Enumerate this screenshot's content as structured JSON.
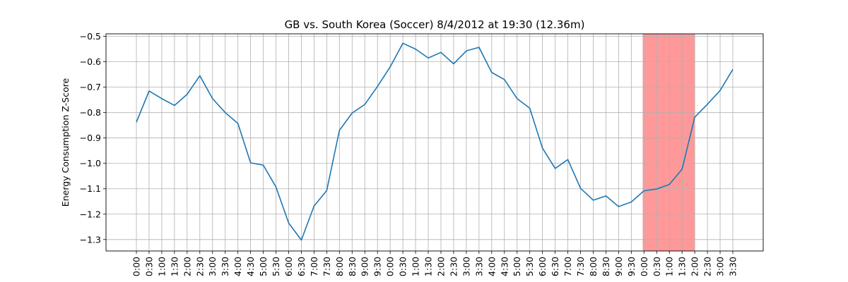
{
  "chart_data": {
    "type": "line",
    "title": "GB vs. South Korea (Soccer) 8/4/2012 at 19:30 (12.36m)",
    "xlabel": "",
    "ylabel": "Energy Consumption Z-Score",
    "ylim": [
      -1.345,
      -0.49
    ],
    "yticks": [
      -1.3,
      -1.2,
      -1.1,
      -1.0,
      -0.9,
      -0.8,
      -0.7,
      -0.6,
      -0.5
    ],
    "ytick_labels": [
      "−1.3",
      "−1.2",
      "−1.1",
      "−1.0",
      "−0.9",
      "−0.8",
      "−0.7",
      "−0.6",
      "−0.5"
    ],
    "x_tick_labels": [
      "0:00",
      "0:30",
      "1:00",
      "1:30",
      "2:00",
      "2:30",
      "3:00",
      "3:30",
      "4:00",
      "4:30",
      "5:00",
      "5:30",
      "6:00",
      "6:30",
      "7:00",
      "7:30",
      "8:00",
      "8:30",
      "9:00",
      "9:30",
      "0:00",
      "0:30",
      "1:00",
      "1:30",
      "2:00",
      "2:30",
      "3:00",
      "3:30",
      "4:00",
      "4:30",
      "5:00",
      "5:30",
      "6:00",
      "6:30",
      "7:00",
      "7:30",
      "8:00",
      "8:30",
      "9:00",
      "9:30",
      "0:00",
      "0:30",
      "1:00",
      "1:30",
      "2:00",
      "2:30",
      "3:00",
      "3:30"
    ],
    "grid": true,
    "highlight": {
      "x_start_index": 39.9,
      "x_end_index": 44,
      "color": "#ff9999"
    },
    "series": [
      {
        "color": "#1f77b4",
        "values": [
          -0.838,
          -0.715,
          -0.745,
          -0.772,
          -0.728,
          -0.655,
          -0.745,
          -0.8,
          -0.843,
          -0.998,
          -1.007,
          -1.093,
          -1.235,
          -1.302,
          -1.168,
          -1.107,
          -0.87,
          -0.802,
          -0.768,
          -0.697,
          -0.62,
          -0.527,
          -0.55,
          -0.585,
          -0.563,
          -0.608,
          -0.557,
          -0.543,
          -0.642,
          -0.67,
          -0.745,
          -0.783,
          -0.94,
          -1.02,
          -0.985,
          -1.098,
          -1.145,
          -1.128,
          -1.17,
          -1.152,
          -1.108,
          -1.101,
          -1.083,
          -1.023,
          -0.818,
          -0.767,
          -0.713,
          -0.63
        ]
      }
    ]
  }
}
